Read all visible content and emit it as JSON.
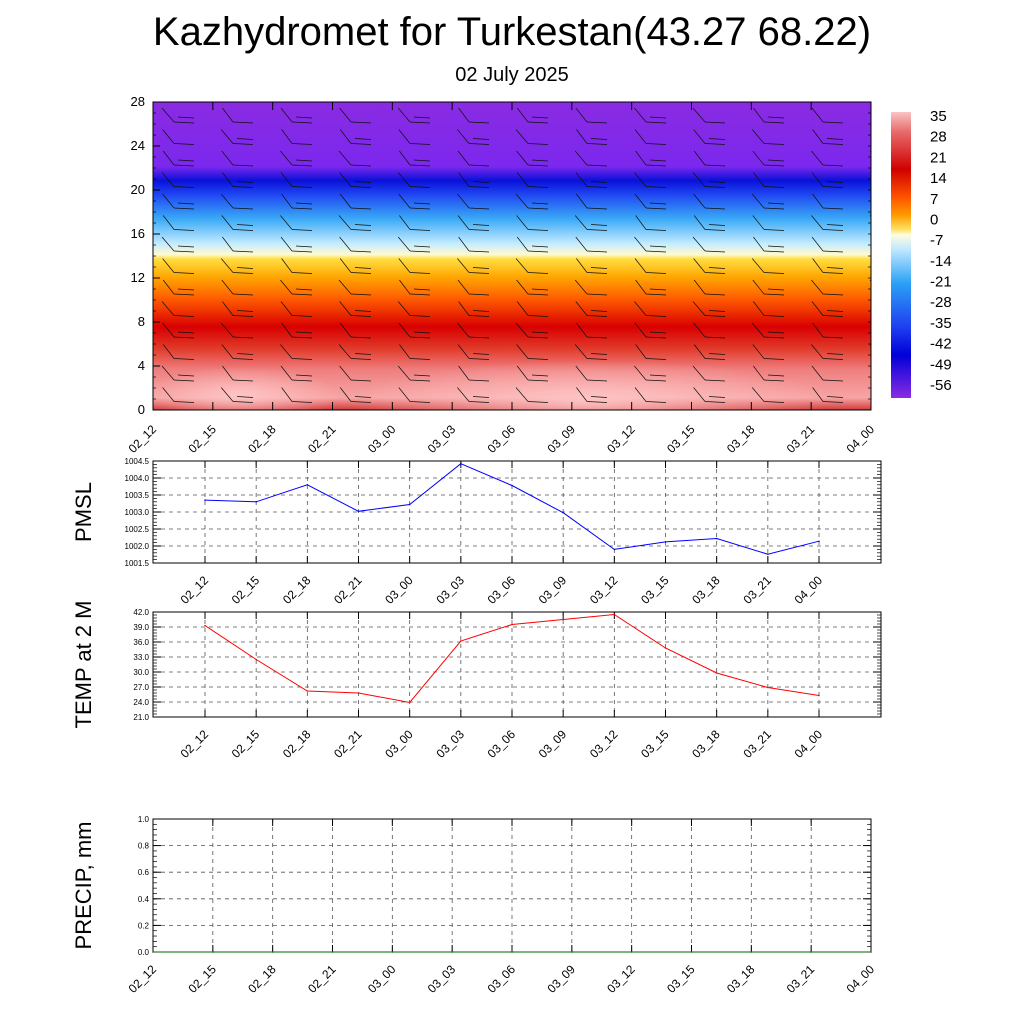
{
  "title": "Kazhydromet for Turkestan(43.27 68.22)",
  "subtitle": "02 July 2025",
  "colors": {
    "pmsl_line": "#0000ff",
    "temp_line": "#ff0000",
    "precip_line": "#006400"
  },
  "chart_data": [
    {
      "type": "heatmap",
      "name": "temperature-wind-profile",
      "categories": [
        "02_12",
        "02_15",
        "02_18",
        "02_21",
        "03_00",
        "03_03",
        "03_06",
        "03_09",
        "03_12",
        "03_15",
        "03_18",
        "03_21",
        "04_00"
      ],
      "ylim": [
        0,
        28
      ],
      "yticks": [
        "0",
        "4",
        "8",
        "12",
        "16",
        "20",
        "24",
        "28"
      ],
      "colorbar_labels": [
        "35",
        "28",
        "21",
        "14",
        "7",
        "0",
        "-7",
        "-14",
        "-21",
        "-28",
        "-35",
        "-42",
        "-49",
        "-56"
      ],
      "colorbar_range": [
        -60,
        38
      ],
      "wind_barbs": true,
      "legend": "right"
    },
    {
      "type": "line",
      "name": "pmsl",
      "ylabel": "PMSL",
      "categories": [
        "02_12",
        "02_15",
        "02_18",
        "02_21",
        "03_00",
        "03_03",
        "03_06",
        "03_09",
        "03_12",
        "03_15",
        "03_18",
        "03_21",
        "04_00"
      ],
      "values": [
        1003.35,
        1003.3,
        1003.8,
        1003.02,
        1003.22,
        1004.42,
        1003.78,
        1002.98,
        1001.9,
        1002.12,
        1002.22,
        1001.76,
        1002.14
      ],
      "ylim": [
        1001.5,
        1004.5
      ],
      "yticks": [
        "1001.5",
        "1002.0",
        "1002.5",
        "1003.0",
        "1003.5",
        "1004.0",
        "1004.5"
      ],
      "grid": true
    },
    {
      "type": "line",
      "name": "temp-2m",
      "ylabel": "TEMP at 2 M",
      "categories": [
        "02_12",
        "02_15",
        "02_18",
        "02_21",
        "03_00",
        "03_03",
        "03_06",
        "03_09",
        "03_12",
        "03_15",
        "03_18",
        "03_21",
        "04_00"
      ],
      "values": [
        39.3,
        32.5,
        26.2,
        25.8,
        23.9,
        36.2,
        39.5,
        40.5,
        41.5,
        34.8,
        29.8,
        26.9,
        25.3
      ],
      "ylim": [
        21.0,
        42.0
      ],
      "yticks": [
        "21.0",
        "24.0",
        "27.0",
        "30.0",
        "33.0",
        "36.0",
        "39.0",
        "42.0"
      ],
      "grid": true
    },
    {
      "type": "line",
      "name": "precip",
      "ylabel": "PRECIP, mm",
      "categories": [
        "02_12",
        "02_15",
        "02_18",
        "02_21",
        "03_00",
        "03_03",
        "03_06",
        "03_09",
        "03_12",
        "03_15",
        "03_18",
        "03_21",
        "04_00"
      ],
      "values": [
        0,
        0,
        0,
        0,
        0,
        0,
        0,
        0,
        0,
        0,
        0,
        0,
        0
      ],
      "ylim": [
        0.0,
        1.0
      ],
      "yticks": [
        "0.0",
        "0.2",
        "0.4",
        "0.6",
        "0.8",
        "1.0"
      ],
      "grid": true
    }
  ]
}
